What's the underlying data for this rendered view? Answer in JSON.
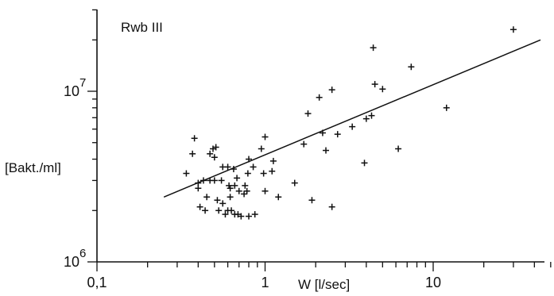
{
  "chart_data": {
    "type": "scatter",
    "title": "Rwb III",
    "xlabel": "W [l/sec]",
    "ylabel": "[Bakt./ml]",
    "xscale": "log",
    "yscale": "log",
    "xlim": [
      0.1,
      50
    ],
    "ylim": [
      1000000,
      40000000
    ],
    "x_ticks": [
      {
        "value": 0.1,
        "label": "0,1"
      },
      {
        "value": 1,
        "label": "1"
      },
      {
        "value": 10,
        "label": "10"
      }
    ],
    "y_ticks": [
      {
        "value": 1000000,
        "base": "10",
        "exp": "6"
      },
      {
        "value": 10000000,
        "base": "10",
        "exp": "7"
      }
    ],
    "grid": false,
    "legend": "none",
    "series": [
      {
        "points": [
          [
            0.34,
            3300000
          ],
          [
            0.37,
            4300000
          ],
          [
            0.38,
            5300000
          ],
          [
            0.4,
            2700000
          ],
          [
            0.4,
            2900000
          ],
          [
            0.41,
            2100000
          ],
          [
            0.43,
            3000000
          ],
          [
            0.44,
            2000000
          ],
          [
            0.45,
            2400000
          ],
          [
            0.47,
            3000000
          ],
          [
            0.47,
            4300000
          ],
          [
            0.49,
            4600000
          ],
          [
            0.5,
            4100000
          ],
          [
            0.5,
            3000000
          ],
          [
            0.51,
            4700000
          ],
          [
            0.52,
            2300000
          ],
          [
            0.53,
            2000000
          ],
          [
            0.55,
            3000000
          ],
          [
            0.56,
            2200000
          ],
          [
            0.56,
            3600000
          ],
          [
            0.58,
            1900000
          ],
          [
            0.6,
            2000000
          ],
          [
            0.6,
            3600000
          ],
          [
            0.61,
            2800000
          ],
          [
            0.62,
            2400000
          ],
          [
            0.62,
            2700000
          ],
          [
            0.63,
            2000000
          ],
          [
            0.65,
            3500000
          ],
          [
            0.66,
            1900000
          ],
          [
            0.66,
            2800000
          ],
          [
            0.68,
            3100000
          ],
          [
            0.69,
            1900000
          ],
          [
            0.7,
            2600000
          ],
          [
            0.72,
            1850000
          ],
          [
            0.75,
            2500000
          ],
          [
            0.76,
            2800000
          ],
          [
            0.78,
            2600000
          ],
          [
            0.79,
            3300000
          ],
          [
            0.8,
            1850000
          ],
          [
            0.8,
            4000000
          ],
          [
            0.85,
            3600000
          ],
          [
            0.87,
            1900000
          ],
          [
            0.95,
            4600000
          ],
          [
            0.98,
            3300000
          ],
          [
            1.0,
            2600000
          ],
          [
            1.0,
            5400000
          ],
          [
            1.1,
            3400000
          ],
          [
            1.12,
            3900000
          ],
          [
            1.2,
            2400000
          ],
          [
            1.5,
            2900000
          ],
          [
            1.7,
            4900000
          ],
          [
            1.8,
            7400000
          ],
          [
            1.9,
            2300000
          ],
          [
            2.1,
            9200000
          ],
          [
            2.2,
            5700000
          ],
          [
            2.3,
            4500000
          ],
          [
            2.5,
            10200000
          ],
          [
            2.5,
            2100000
          ],
          [
            2.7,
            5600000
          ],
          [
            3.3,
            6200000
          ],
          [
            3.9,
            3800000
          ],
          [
            4.0,
            6900000
          ],
          [
            4.3,
            7200000
          ],
          [
            4.4,
            18000000
          ],
          [
            4.5,
            11000000
          ],
          [
            5.0,
            10300000
          ],
          [
            6.2,
            4600000
          ],
          [
            7.4,
            13900000
          ],
          [
            12.0,
            8000000
          ],
          [
            30.0,
            23000000
          ]
        ]
      }
    ],
    "fit_line": {
      "x": [
        0.25,
        50
      ],
      "y": [
        2400000,
        20000000
      ]
    }
  }
}
